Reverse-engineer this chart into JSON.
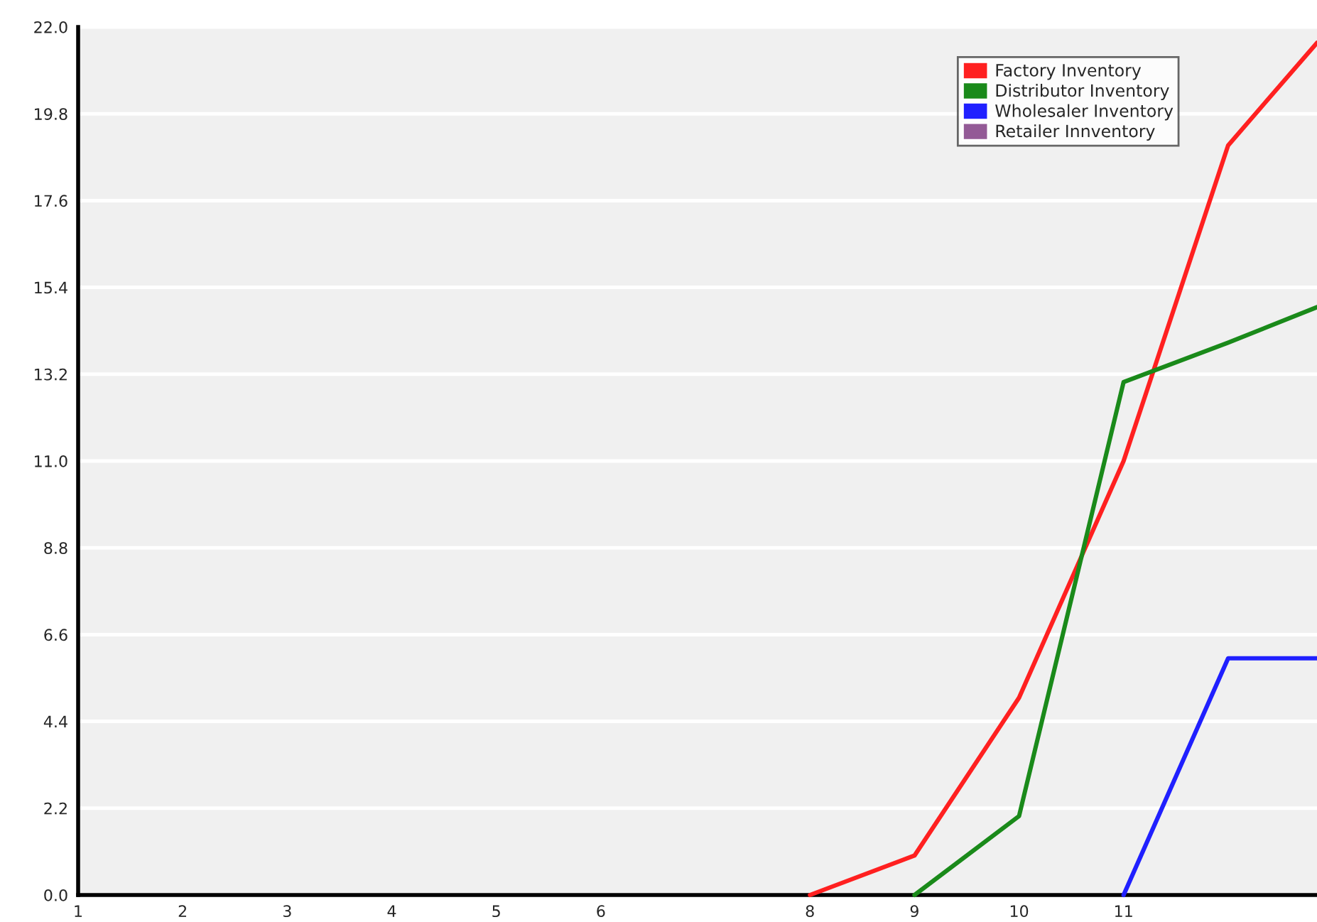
{
  "chart_data": {
    "type": "line",
    "xlim": [
      1,
      12.85
    ],
    "xticks": [
      1,
      2,
      3,
      4,
      5,
      6,
      8,
      9,
      10,
      11
    ],
    "ylim": [
      0,
      22
    ],
    "yticks": [
      {
        "value": 0,
        "label": "0.0"
      },
      {
        "value": 2.2,
        "label": "2.2"
      },
      {
        "value": 4.4,
        "label": "4.4"
      },
      {
        "value": 6.6,
        "label": "6.6"
      },
      {
        "value": 8.8,
        "label": "8.8"
      },
      {
        "value": 11,
        "label": "11.0"
      },
      {
        "value": 13.2,
        "label": "13.2"
      },
      {
        "value": 15.4,
        "label": "15.4"
      },
      {
        "value": 17.6,
        "label": "17.6"
      },
      {
        "value": 19.8,
        "label": "19.8"
      },
      {
        "value": 22,
        "label": "22.0"
      }
    ],
    "grid": "y",
    "legend": "top right",
    "marker": "none",
    "line_style": "solid",
    "series": [
      {
        "name": "Factory Inventory",
        "color": "#ff2020",
        "x": [
          8,
          9,
          10,
          11,
          12,
          12.85
        ],
        "values": [
          0,
          1,
          5,
          11,
          19,
          21.6
        ]
      },
      {
        "name": "Distributor Inventory",
        "color": "#1a8a1a",
        "x": [
          9,
          10,
          11,
          12,
          12.85
        ],
        "values": [
          0,
          2,
          13,
          14,
          14.9
        ]
      },
      {
        "name": "Wholesaler Inventory",
        "color": "#2020ff",
        "x": [
          11,
          12,
          12.85
        ],
        "values": [
          0,
          6,
          6
        ]
      },
      {
        "name": "Retailer Innventory",
        "color": "#935a96"
      }
    ]
  }
}
